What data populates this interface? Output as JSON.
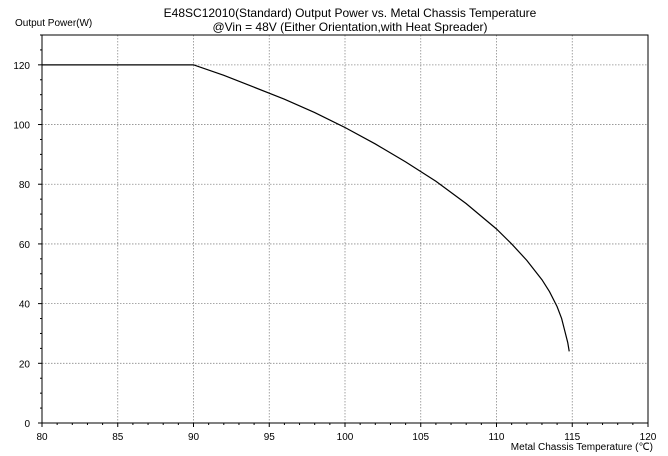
{
  "chart_data": {
    "type": "line",
    "title": "E48SC12010(Standard) Output Power vs. Metal Chassis Temperature",
    "subtitle": "@Vin = 48V (Either Orientation,with Heat Spreader)",
    "ylabel": "Output Power(W)",
    "xlabel": "Metal Chassis Temperature (℃)",
    "xlim": [
      80,
      120
    ],
    "ylim": [
      0,
      130
    ],
    "x_ticks": [
      80,
      85,
      90,
      95,
      100,
      105,
      110,
      115,
      120
    ],
    "y_ticks": [
      0,
      20,
      40,
      60,
      80,
      100,
      120
    ],
    "grid": true,
    "series": [
      {
        "x": [
          80,
          90,
          92,
          94,
          96,
          98,
          100,
          102,
          104,
          106,
          108,
          110,
          111,
          112,
          113,
          113.5,
          114,
          114.3,
          114.5,
          114.7,
          114.8
        ],
        "y": [
          120,
          120,
          116.5,
          112.5,
          108.5,
          104,
          99,
          93.5,
          87.5,
          81,
          73.5,
          65,
          60,
          54.5,
          48,
          44,
          39,
          35,
          31,
          27,
          24
        ]
      }
    ]
  }
}
